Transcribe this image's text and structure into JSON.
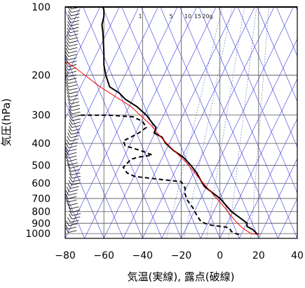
{
  "chart_data": {
    "type": "line",
    "title": "",
    "xlabel": "気温(実線), 露点(破線)",
    "ylabel": "気圧(hPa)",
    "y_scale": "log",
    "y_reversed": true,
    "xlim": [
      -80,
      40
    ],
    "ylim": [
      100,
      1050
    ],
    "x_ticks": [
      -80,
      -60,
      -40,
      -20,
      0,
      20,
      40
    ],
    "y_ticks": [
      100,
      200,
      300,
      400,
      500,
      600,
      700,
      800,
      900,
      1000
    ],
    "mixing_ratio_labels": [
      "1",
      "5",
      "10",
      "15",
      "20g"
    ],
    "mixing_ratio_values": [
      1,
      5,
      10,
      15,
      20
    ],
    "colors": {
      "temperature": "#000000",
      "dewpoint": "#000000",
      "parcel": "#ff0000",
      "isotherms_dry_adiabats": "#3a3adf",
      "mixing_ratio": "#4444aa",
      "grid": "#555555"
    },
    "series": [
      {
        "name": "",
        "style": "solid",
        "color": "#000000",
        "points": [
          [
            -60.5,
            100
          ],
          [
            -60,
            103
          ],
          [
            -60,
            110
          ],
          [
            -61,
            120
          ],
          [
            -60.5,
            130
          ],
          [
            -60,
            160
          ],
          [
            -60,
            180
          ],
          [
            -59,
            200
          ],
          [
            -57,
            225
          ],
          [
            -52,
            240
          ],
          [
            -49,
            255
          ],
          [
            -43,
            275
          ],
          [
            -38,
            300
          ],
          [
            -35,
            325
          ],
          [
            -33,
            340
          ],
          [
            -34,
            360
          ],
          [
            -30,
            375
          ],
          [
            -28,
            400
          ],
          [
            -24,
            430
          ],
          [
            -19,
            460
          ],
          [
            -15,
            500
          ],
          [
            -12,
            540
          ],
          [
            -10,
            580
          ],
          [
            -8,
            620
          ],
          [
            0,
            700
          ],
          [
            6,
            800
          ],
          [
            11,
            860
          ],
          [
            14,
            900
          ],
          [
            14,
            930
          ],
          [
            17,
            960
          ],
          [
            19,
            1000
          ],
          [
            20,
            1010
          ]
        ]
      },
      {
        "name": "",
        "style": "dashed",
        "color": "#000000",
        "points": [
          [
            -72,
            300
          ],
          [
            -58,
            300
          ],
          [
            -45,
            305
          ],
          [
            -40,
            320
          ],
          [
            -38,
            340
          ],
          [
            -42,
            360
          ],
          [
            -46,
            375
          ],
          [
            -50,
            390
          ],
          [
            -49,
            410
          ],
          [
            -41,
            430
          ],
          [
            -35,
            450
          ],
          [
            -42,
            460
          ],
          [
            -46,
            470
          ],
          [
            -48,
            490
          ],
          [
            -50,
            510
          ],
          [
            -48,
            540
          ],
          [
            -44,
            560
          ],
          [
            -28,
            580
          ],
          [
            -20,
            590
          ],
          [
            -18,
            630
          ],
          [
            -18,
            670
          ],
          [
            -17,
            710
          ],
          [
            -14,
            770
          ],
          [
            -12,
            830
          ],
          [
            -10,
            880
          ],
          [
            -8,
            900
          ],
          [
            -4,
            920
          ],
          [
            3,
            935
          ],
          [
            5,
            950
          ],
          [
            6,
            980
          ],
          [
            8,
            1000
          ],
          [
            10,
            1010
          ]
        ]
      },
      {
        "name": "",
        "style": "solid",
        "color": "#ff0000",
        "points": [
          [
            -82,
            170
          ],
          [
            -75,
            185
          ],
          [
            -62,
            225
          ],
          [
            -46,
            275
          ],
          [
            -36,
            330
          ],
          [
            -30,
            380
          ],
          [
            -25,
            420
          ],
          [
            -18,
            480
          ],
          [
            -10,
            580
          ],
          [
            -3,
            680
          ],
          [
            2,
            760
          ],
          [
            6,
            840
          ],
          [
            9,
            900
          ],
          [
            12,
            950
          ],
          [
            16,
            1000
          ],
          [
            20,
            1010
          ]
        ]
      }
    ],
    "wind_profile": "wind barbs along left edge from 100 to 1000 hPa"
  }
}
